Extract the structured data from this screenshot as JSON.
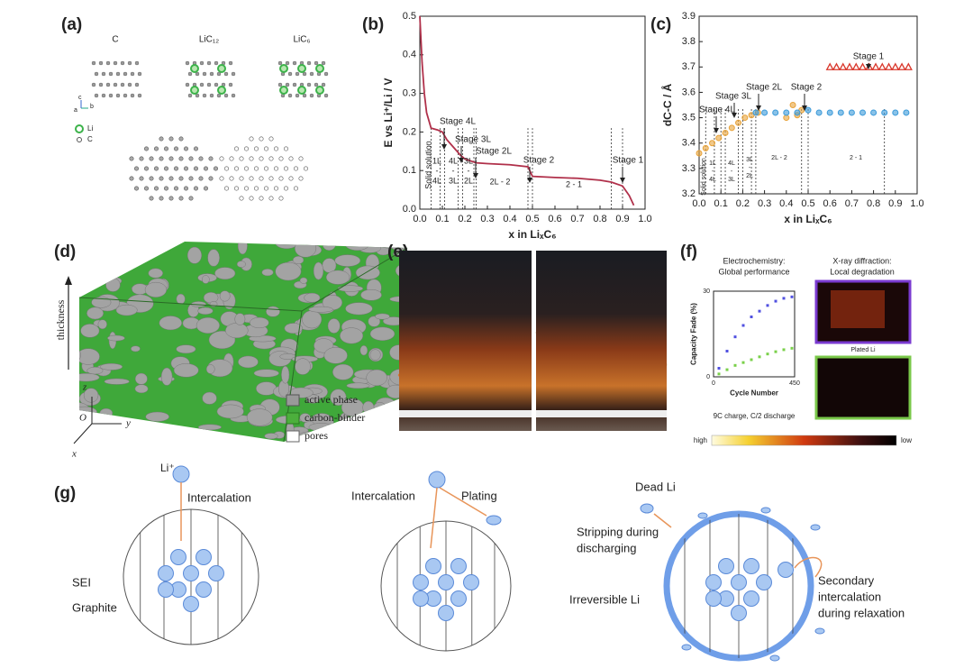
{
  "figure": {
    "panel_labels": [
      "(a)",
      "(b)",
      "(c)",
      "(d)",
      "(e)",
      "(f)",
      "(g)"
    ],
    "a": {
      "structures": [
        "C",
        "LiC₁₂",
        "LiC₆"
      ],
      "legend": [
        "Li",
        "C"
      ],
      "axes": [
        "a",
        "b",
        "c"
      ]
    },
    "d": {
      "axis_title": "thickness",
      "legend": [
        "active phase",
        "carbon-binder",
        "pores"
      ],
      "axes": [
        "z",
        "O",
        "y",
        "x"
      ]
    },
    "f": {
      "headers": [
        [
          "Electrochemistry:",
          "Global performance"
        ],
        [
          "X-ray diffraction:",
          "Local degradation"
        ]
      ],
      "image_label": "Plated Li",
      "condition": "9C charge, C/2 discharge",
      "scale": [
        "high",
        "low"
      ]
    },
    "g": {
      "stage1": [
        "Li⁺",
        "Intercalation",
        "SEI",
        "Graphite"
      ],
      "stage2": [
        "Intercalation",
        "Plating"
      ],
      "stage3": [
        "Dead Li",
        [
          "Stripping during",
          "discharging"
        ],
        "Irreversible Li",
        [
          "Secondary",
          "intercalation",
          "during relaxation"
        ]
      ]
    }
  },
  "chart_data": [
    {
      "type": "line",
      "xlabel": "x in LiₓC₆",
      "ylabel": "E vs Li⁺/Li / V",
      "x": [
        0,
        0.01,
        0.02,
        0.03,
        0.05,
        0.08,
        0.1,
        0.12,
        0.15,
        0.18,
        0.2,
        0.25,
        0.3,
        0.4,
        0.48,
        0.5,
        0.6,
        0.7,
        0.8,
        0.85,
        0.9,
        0.93,
        0.95
      ],
      "values": [
        0.5,
        0.38,
        0.3,
        0.25,
        0.21,
        0.205,
        0.2,
        0.18,
        0.16,
        0.14,
        0.13,
        0.12,
        0.118,
        0.115,
        0.11,
        0.085,
        0.082,
        0.08,
        0.075,
        0.07,
        0.06,
        0.035,
        0.01
      ],
      "color": "#b0304a",
      "xlim": [
        0,
        1
      ],
      "ylim": [
        0,
        0.5
      ],
      "xticks": [
        {
          "value": 0,
          "label": "0.0"
        },
        0.1,
        0.2,
        0.3,
        0.4,
        0.5,
        0.6,
        0.7,
        0.8,
        0.9,
        {
          "value": 1,
          "label": "1.0"
        }
      ],
      "yticks": [
        {
          "value": 0,
          "label": "0.0"
        },
        0.1,
        0.2,
        0.3,
        0.4,
        0.5
      ],
      "dividers": [
        0.05,
        0.09,
        0.11,
        0.17,
        0.19,
        0.24,
        0.25,
        0.48,
        0.5,
        0.85,
        0.9
      ],
      "annotations": [
        {
          "text": "Stage 4L",
          "color": "#222222"
        },
        {
          "text": "Stage 3L",
          "color": "#222222"
        },
        {
          "text": "Stage 2L",
          "color": "#222222"
        },
        {
          "text": "Stage 2",
          "color": "#222222"
        },
        {
          "text": "Stage 1",
          "color": "#222222"
        }
      ],
      "region_labels": [
        [
          "Solid solution"
        ],
        [
          "1L",
          "-",
          "4L"
        ],
        [
          "4L",
          "-",
          "3L"
        ],
        [
          "3L",
          "-",
          "2L"
        ],
        [
          "2L - 2"
        ],
        [
          "2 - 1"
        ]
      ]
    },
    {
      "type": "scatter",
      "xlabel": "x in LiₓC₆",
      "ylabel": "dC-C / Å",
      "series": [
        {
          "color": "#e8a33a",
          "marker": "circle",
          "x": [
            0,
            0.03,
            0.06,
            0.09,
            0.12,
            0.15,
            0.18,
            0.21,
            0.24,
            0.27,
            0.4,
            0.43,
            0.45,
            0.47
          ],
          "values": [
            3.36,
            3.38,
            3.4,
            3.42,
            3.44,
            3.46,
            3.48,
            3.5,
            3.51,
            3.52,
            3.5,
            3.55,
            3.51,
            3.53
          ]
        },
        {
          "color": "#3b9ad9",
          "marker": "circle",
          "x": [
            0.26,
            0.3,
            0.35,
            0.4,
            0.45,
            0.5,
            0.55,
            0.6,
            0.65,
            0.7,
            0.75,
            0.8,
            0.85,
            0.9,
            0.95
          ],
          "values": [
            3.52,
            3.52,
            3.52,
            3.52,
            3.52,
            3.53,
            3.52,
            3.52,
            3.52,
            3.52,
            3.52,
            3.52,
            3.52,
            3.52,
            3.52
          ]
        },
        {
          "color": "#d9382c",
          "marker": "triangle",
          "x": [
            0.6,
            0.63,
            0.66,
            0.69,
            0.72,
            0.75,
            0.78,
            0.81,
            0.84,
            0.87,
            0.9,
            0.93,
            0.96
          ],
          "values": [
            3.7,
            3.7,
            3.7,
            3.7,
            3.7,
            3.7,
            3.7,
            3.7,
            3.7,
            3.7,
            3.7,
            3.7,
            3.7
          ]
        }
      ],
      "xlim": [
        0,
        1
      ],
      "ylim": [
        3.2,
        3.9
      ],
      "xticks": [
        {
          "value": 0,
          "label": "0.0"
        },
        0.1,
        0.2,
        0.3,
        0.4,
        0.5,
        0.6,
        0.7,
        0.8,
        0.9,
        {
          "value": 1,
          "label": "1.0"
        }
      ],
      "yticks": [
        3.2,
        3.3,
        3.4,
        3.5,
        3.6,
        3.7,
        3.8,
        3.9
      ],
      "dividers": [
        0.03,
        0.07,
        0.1,
        0.12,
        0.18,
        0.2,
        0.24,
        0.26,
        0.47,
        0.5,
        0.85
      ],
      "annotations": [
        {
          "text": "Stage 4L",
          "color": "#e8a33a"
        },
        {
          "text": "Stage 3L",
          "color": "#e8a33a"
        },
        {
          "text": "Stage 2L",
          "color": "#e8a33a"
        },
        {
          "text": "Stage 2",
          "color": "#3b9ad9"
        },
        {
          "text": "Stage 1",
          "color": "#d9382c"
        }
      ],
      "region_labels": [
        [
          "Solid solution"
        ],
        [
          "1L",
          "-",
          "4L"
        ],
        [
          "4L",
          "-",
          "3L"
        ],
        [
          "3L",
          "-",
          "2L"
        ],
        [
          "2L - 2"
        ],
        [
          "2 - 1"
        ]
      ]
    },
    {
      "type": "scatter",
      "xlabel": "Cycle Number",
      "ylabel": "Capacity Fade (%)",
      "series": [
        {
          "color": "#5050e0",
          "marker": "square",
          "x": [
            30,
            75,
            120,
            165,
            210,
            255,
            300,
            345,
            390,
            435
          ],
          "values": [
            3,
            9,
            14,
            18,
            21,
            23,
            25,
            26.5,
            27.5,
            28
          ]
        },
        {
          "color": "#7ad04a",
          "marker": "square",
          "x": [
            30,
            75,
            120,
            165,
            210,
            255,
            300,
            345,
            390,
            435
          ],
          "values": [
            1,
            2.5,
            4,
            5,
            6,
            7,
            8,
            8.8,
            9.5,
            10
          ]
        }
      ],
      "xlim": [
        0,
        450
      ],
      "ylim": [
        0,
        30
      ],
      "xticks": [
        0,
        450
      ],
      "yticks": [
        0,
        30
      ]
    }
  ]
}
